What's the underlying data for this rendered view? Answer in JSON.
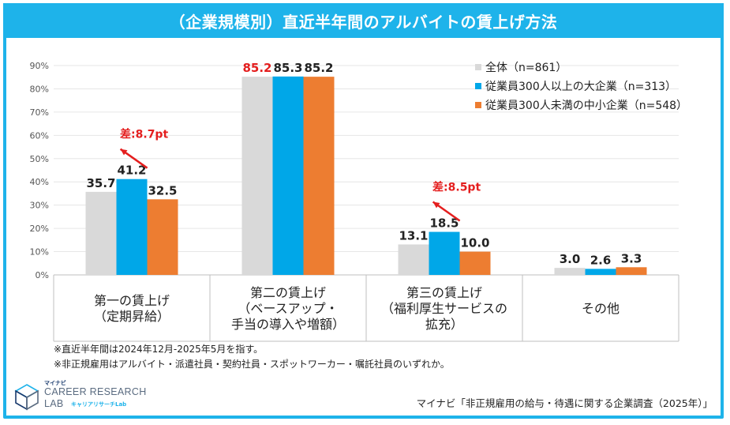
{
  "title": "（企業規模別）直近半年間のアルバイトの賃上げ方法",
  "chart_data": {
    "type": "bar",
    "ylim": [
      0,
      90
    ],
    "yticks": [
      "0%",
      "10%",
      "20%",
      "30%",
      "40%",
      "50%",
      "60%",
      "70%",
      "80%",
      "90%"
    ],
    "categories": [
      [
        "第一の賃上げ",
        "（定期昇給）"
      ],
      [
        "第二の賃上げ",
        "（ベースアップ・",
        "手当の導入や増額）"
      ],
      [
        "第三の賃上げ",
        "（福利厚生サービスの",
        "拡充）"
      ],
      [
        "その他"
      ]
    ],
    "series": [
      {
        "name": "全体（n=861）",
        "color": "#d9d9d9",
        "values": [
          35.7,
          85.2,
          13.1,
          3.0
        ],
        "labels": [
          "35.7",
          "85.2",
          "13.1",
          "3.0"
        ]
      },
      {
        "name": "従業員300人以上の大企業（n=313）",
        "color": "#00a7e8",
        "values": [
          41.2,
          85.3,
          18.5,
          2.6
        ],
        "labels": [
          "41.2",
          "85.3",
          "18.5",
          "2.6"
        ]
      },
      {
        "name": "従業員300人未満の中小企業（n=548）",
        "color": "#ed7d31",
        "values": [
          32.5,
          85.2,
          10.0,
          3.3
        ],
        "labels": [
          "32.5",
          "85.2",
          "10.0",
          "3.3"
        ]
      }
    ],
    "highlight_label": {
      "category": 1,
      "series": 0,
      "color": "#e41e1e"
    },
    "annotations": [
      {
        "text": "差:8.7pt",
        "category": 0,
        "color": "#e41e1e"
      },
      {
        "text": "差:8.5pt",
        "category": 2,
        "color": "#e41e1e"
      }
    ]
  },
  "notes": [
    "※直近半年間は2024年12月-2025年5月を指す。",
    "※非正規雇用はアルバイト・派遣社員・契約社員・スポットワーカー・嘱託社員のいずれか。"
  ],
  "source": "マイナビ「非正規雇用の給与・待遇に関する企業調査（2025年）」",
  "logo": {
    "brand": "マイナビ",
    "line1": "CAREER RESEARCH",
    "line2": "LAB",
    "sub": "キャリアリサーチLab"
  }
}
